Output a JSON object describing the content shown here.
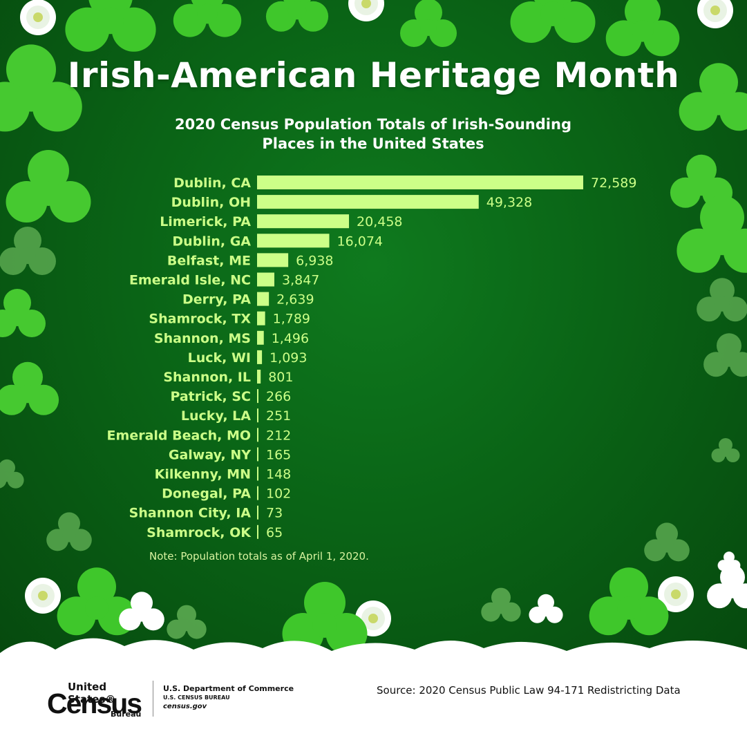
{
  "title": "Irish-American Heritage Month",
  "subtitle_line1": "2020 Census Population Totals of Irish-Sounding",
  "subtitle_line2": "Places in the United States",
  "note": "Note: Population totals as of April 1, 2020.",
  "source": "Source: 2020 Census Public Law 94-171 Redistricting Data",
  "logo": {
    "line1": "United States®",
    "line2": "Census",
    "line3": "Bureau"
  },
  "department": {
    "line1": "U.S. Department of Commerce",
    "line2": "U.S. CENSUS BUREAU",
    "line3": "census.gov"
  },
  "colors": {
    "background": "#0a6416",
    "bar": "#ccff88",
    "label": "#ccff88",
    "title": "#ffffff"
  },
  "chart_data": {
    "type": "bar",
    "orientation": "horizontal",
    "categories": [
      "Dublin, CA",
      "Dublin, OH",
      "Limerick, PA",
      "Dublin, GA",
      "Belfast, ME",
      "Emerald Isle, NC",
      "Derry, PA",
      "Shamrock, TX",
      "Shannon, MS",
      "Luck, WI",
      "Shannon, IL",
      "Patrick, SC",
      "Lucky, LA",
      "Emerald Beach, MO",
      "Galway, NY",
      "Kilkenny, MN",
      "Donegal, PA",
      "Shannon City, IA",
      "Shamrock, OK"
    ],
    "values": [
      72589,
      49328,
      20458,
      16074,
      6938,
      3847,
      2639,
      1789,
      1496,
      1093,
      801,
      266,
      251,
      212,
      165,
      148,
      102,
      73,
      65
    ],
    "value_labels": [
      "72,589",
      "49,328",
      "20,458",
      "16,074",
      "6,938",
      "3,847",
      "2,639",
      "1,789",
      "1,496",
      "1,093",
      "801",
      "266",
      "251",
      "212",
      "165",
      "148",
      "102",
      "73",
      "65"
    ],
    "xlim": [
      0,
      72589
    ],
    "grid": false,
    "legend": "none"
  }
}
